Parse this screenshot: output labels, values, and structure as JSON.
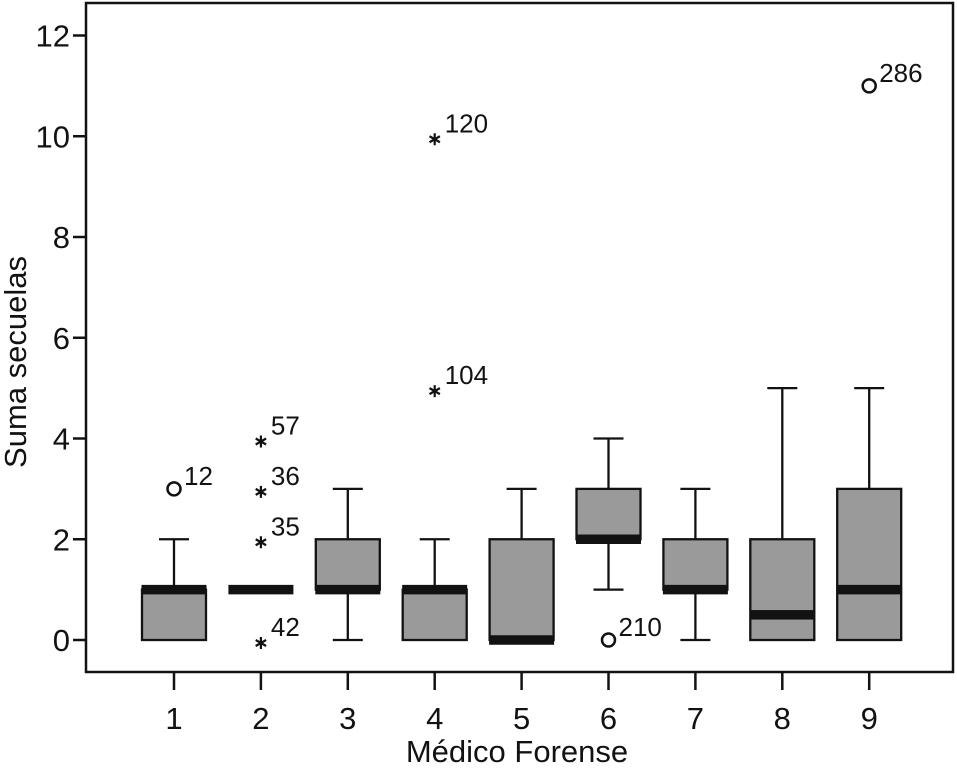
{
  "chart_data": {
    "type": "boxplot",
    "title": "",
    "xlabel": "Médico Forense",
    "ylabel": "Suma secuelas",
    "categories": [
      "1",
      "2",
      "3",
      "4",
      "5",
      "6",
      "7",
      "8",
      "9"
    ],
    "yticks": [
      0,
      2,
      4,
      6,
      8,
      10,
      12
    ],
    "ylim": [
      -0.64,
      12.65
    ],
    "grid": false,
    "legend": "none",
    "colors": {
      "box_fill": "#9a9a9a",
      "line": "#121212",
      "background": "#ffffff"
    },
    "boxes": [
      {
        "category": "1",
        "whisker_low": 0,
        "q1": 0,
        "median": 1,
        "q3": 1,
        "whisker_high": 2,
        "outliers": [
          {
            "value": 3,
            "label": "12",
            "marker": "circle"
          }
        ]
      },
      {
        "category": "2",
        "whisker_low": 1,
        "q1": 1,
        "median": 1,
        "q3": 1,
        "whisker_high": 1,
        "outliers": [
          {
            "value": 4,
            "label": "57",
            "marker": "asterisk"
          },
          {
            "value": 3,
            "label": "36",
            "marker": "asterisk"
          },
          {
            "value": 2,
            "label": "35",
            "marker": "asterisk"
          },
          {
            "value": 0,
            "label": "42",
            "marker": "asterisk"
          }
        ]
      },
      {
        "category": "3",
        "whisker_low": 0,
        "q1": 1,
        "median": 1,
        "q3": 2,
        "whisker_high": 3,
        "outliers": []
      },
      {
        "category": "4",
        "whisker_low": 0,
        "q1": 0,
        "median": 1,
        "q3": 1,
        "whisker_high": 2,
        "outliers": [
          {
            "value": 10,
            "label": "120",
            "marker": "asterisk"
          },
          {
            "value": 5,
            "label": "104",
            "marker": "asterisk"
          }
        ]
      },
      {
        "category": "5",
        "whisker_low": 0,
        "q1": 0,
        "median": 0,
        "q3": 2,
        "whisker_high": 3,
        "outliers": []
      },
      {
        "category": "6",
        "whisker_low": 1,
        "q1": 2,
        "median": 2,
        "q3": 3,
        "whisker_high": 4,
        "outliers": [
          {
            "value": 0,
            "label": "210",
            "marker": "circle"
          }
        ]
      },
      {
        "category": "7",
        "whisker_low": 0,
        "q1": 1,
        "median": 1,
        "q3": 2,
        "whisker_high": 3,
        "outliers": []
      },
      {
        "category": "8",
        "whisker_low": 0,
        "q1": 0,
        "median": 0.5,
        "q3": 2,
        "whisker_high": 5,
        "outliers": []
      },
      {
        "category": "9",
        "whisker_low": 0,
        "q1": 0,
        "median": 1,
        "q3": 3,
        "whisker_high": 5,
        "outliers": [
          {
            "value": 11,
            "label": "286",
            "marker": "circle"
          }
        ]
      }
    ]
  }
}
